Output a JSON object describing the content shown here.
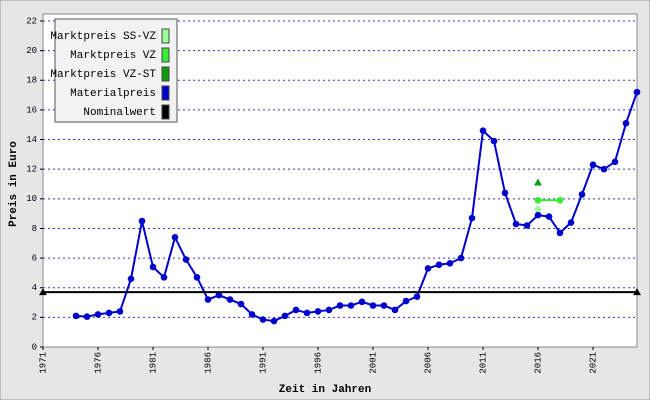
{
  "chart_data": {
    "type": "line",
    "xlabel": "Zeit in Jahren",
    "ylabel": "Preis in Euro",
    "xlim": [
      1971,
      2025
    ],
    "xticks": [
      1971,
      1976,
      1981,
      1986,
      1991,
      1996,
      2001,
      2006,
      2011,
      2016,
      2021
    ],
    "ylim": [
      0,
      22
    ],
    "yticks": [
      0,
      2,
      4,
      6,
      8,
      10,
      12,
      14,
      16,
      18,
      20,
      22
    ],
    "grid": true,
    "legend": "upper left",
    "series": [
      {
        "name": "Marktpreis SS-VZ",
        "color": "#99ff99",
        "marker": "diamond",
        "x": [
          2016
        ],
        "values": [
          9.3
        ]
      },
      {
        "name": "Marktpreis VZ",
        "color": "#33ee33",
        "marker": "circle",
        "x": [
          2016,
          2018
        ],
        "values": [
          9.9,
          9.9
        ]
      },
      {
        "name": "Marktpreis VZ-ST",
        "color": "#119911",
        "marker": "triangle",
        "x": [
          2016
        ],
        "values": [
          11.1
        ]
      },
      {
        "name": "Materialpreis",
        "color": "#0000cc",
        "marker": "circle",
        "x": [
          1974,
          1975,
          1976,
          1977,
          1978,
          1979,
          1980,
          1981,
          1982,
          1983,
          1984,
          1985,
          1986,
          1987,
          1988,
          1989,
          1990,
          1991,
          1992,
          1993,
          1994,
          1995,
          1996,
          1997,
          1998,
          1999,
          2000,
          2001,
          2002,
          2003,
          2004,
          2005,
          2006,
          2007,
          2008,
          2009,
          2010,
          2011,
          2012,
          2013,
          2014,
          2015,
          2016,
          2017,
          2018,
          2019,
          2020,
          2021,
          2022,
          2023,
          2024,
          2025
        ],
        "values": [
          2.1,
          2.05,
          2.2,
          2.3,
          2.4,
          4.6,
          8.5,
          5.4,
          4.7,
          7.4,
          5.9,
          4.7,
          3.2,
          3.5,
          3.2,
          2.9,
          2.2,
          1.85,
          1.75,
          2.1,
          2.5,
          2.3,
          2.4,
          2.5,
          2.8,
          2.8,
          3.05,
          2.8,
          2.8,
          2.5,
          3.1,
          3.4,
          5.3,
          5.55,
          5.65,
          6.0,
          8.7,
          14.6,
          13.9,
          10.4,
          8.3,
          8.2,
          8.9,
          8.8,
          7.7,
          8.4,
          10.3,
          12.3,
          12.0,
          12.5,
          15.1,
          17.2
        ]
      },
      {
        "name": "Nominalwert",
        "color": "#000000",
        "marker": "triangle",
        "x": [
          1971,
          2025
        ],
        "values": [
          3.7,
          3.7
        ]
      }
    ]
  }
}
